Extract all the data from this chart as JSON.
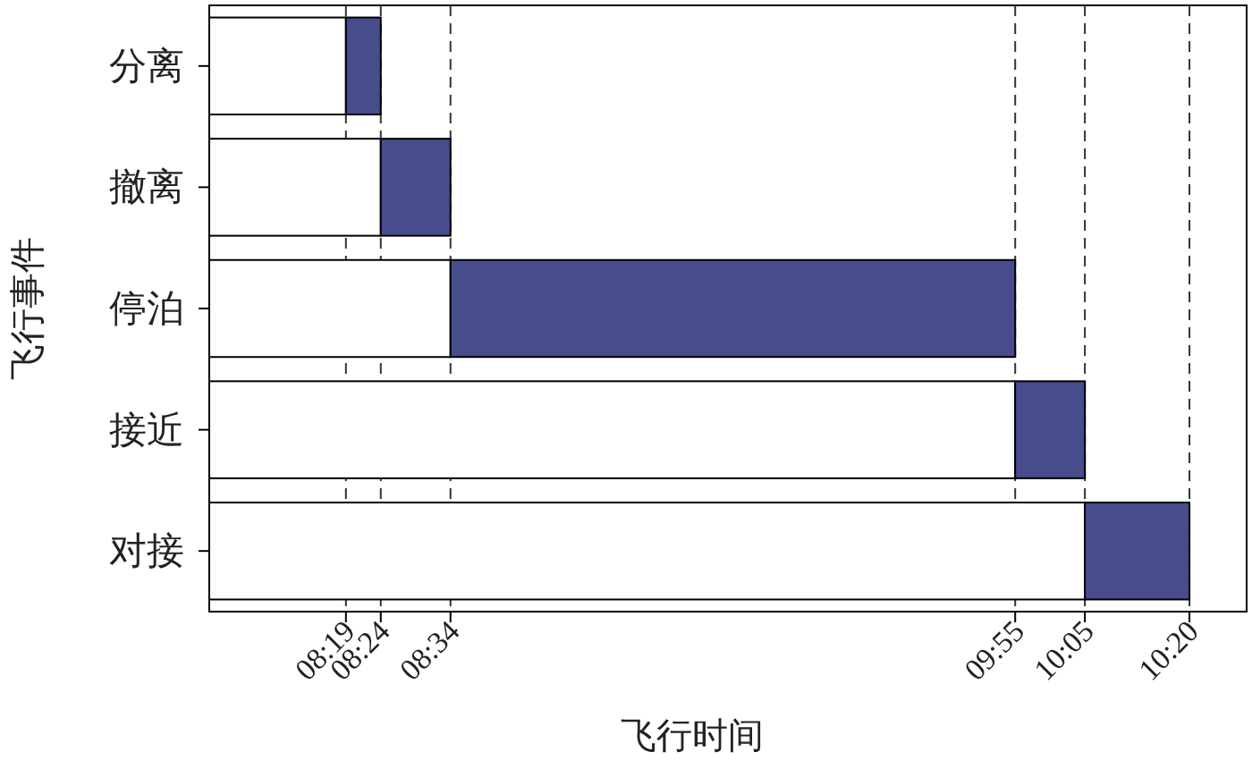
{
  "chart_data": {
    "type": "bar",
    "orientation": "horizontal",
    "stacked": true,
    "xlabel": "飞行时间",
    "ylabel": "飞行事件",
    "categories": [
      "分离",
      "撤离",
      "停泊",
      "接近",
      "对接"
    ],
    "series": [
      {
        "color": "#ffffff",
        "values": [
          8.3167,
          8.4,
          8.5667,
          9.9167,
          10.0833
        ]
      },
      {
        "color": "#474c8c",
        "base": [
          8.3167,
          8.4,
          8.5667,
          9.9167,
          10.0833
        ],
        "values": [
          0.0833,
          0.1667,
          1.35,
          0.1667,
          0.25
        ]
      }
    ],
    "xlim": [
      7.99,
      10.47
    ],
    "xticks": [
      {
        "value": 8.3167,
        "label": "08:19"
      },
      {
        "value": 8.4,
        "label": "08:24"
      },
      {
        "value": 8.5667,
        "label": "08:34"
      },
      {
        "value": 9.9167,
        "label": "09:55"
      },
      {
        "value": 10.0833,
        "label": "10:05"
      },
      {
        "value": 10.3333,
        "label": "10:20"
      }
    ],
    "ref_lines": [
      {
        "axis": "x",
        "value": 8.3167,
        "line_style": "dashed"
      },
      {
        "axis": "x",
        "value": 8.4,
        "line_style": "dashed"
      },
      {
        "axis": "x",
        "value": 8.5667,
        "line_style": "dashed"
      },
      {
        "axis": "x",
        "value": 9.9167,
        "line_style": "dashed"
      },
      {
        "axis": "x",
        "value": 10.0833,
        "line_style": "dashed"
      },
      {
        "axis": "x",
        "value": 10.3333,
        "line_style": "dashed"
      }
    ]
  }
}
